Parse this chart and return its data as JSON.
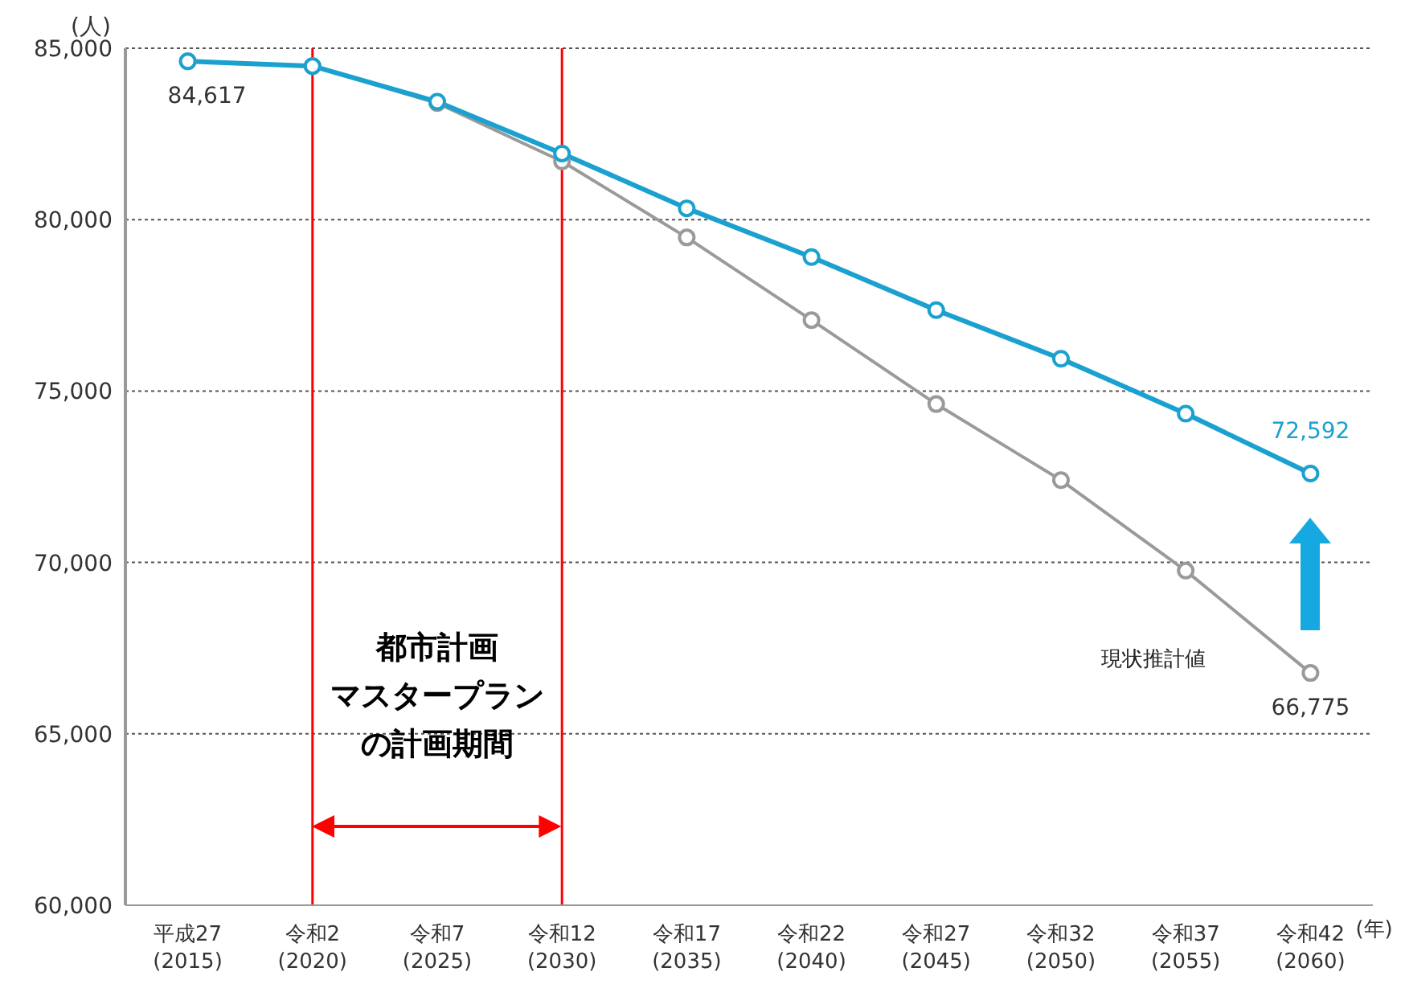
{
  "chart_data": {
    "type": "line",
    "ylabel": "(人)",
    "xlabel": "(年)",
    "categories": [
      "平成27\n(2015)",
      "令和2\n(2020)",
      "令和7\n(2025)",
      "令和12\n(2030)",
      "令和17\n(2035)",
      "令和22\n(2040)",
      "令和27\n(2045)",
      "令和32\n(2050)",
      "令和37\n(2055)",
      "令和42\n(2060)"
    ],
    "series": [
      {
        "name": "現状推計値",
        "color": "#9a9a9a",
        "values": [
          84617,
          84480,
          83400,
          81700,
          79480,
          77070,
          74620,
          72400,
          69760,
          66775
        ],
        "value_labels": [
          "84,617",
          null,
          null,
          null,
          null,
          null,
          null,
          null,
          null,
          "66,775"
        ]
      },
      {
        "color": "#1ba1cf",
        "values": [
          84620,
          84480,
          83440,
          81930,
          80330,
          78910,
          77360,
          75940,
          74340,
          72592
        ],
        "value_labels": [
          null,
          null,
          null,
          null,
          null,
          null,
          null,
          null,
          null,
          "72,592"
        ]
      }
    ],
    "ylim": [
      60000,
      85000
    ],
    "yticks": [
      {
        "value": 60000,
        "label": "60,000"
      },
      {
        "value": 65000,
        "label": "65,000"
      },
      {
        "value": 70000,
        "label": "70,000"
      },
      {
        "value": 75000,
        "label": "75,000"
      },
      {
        "value": 80000,
        "label": "80,000"
      },
      {
        "value": 85000,
        "label": "85,000"
      }
    ],
    "grid": "y",
    "legend": false,
    "marker": "circle",
    "line_style": "solid",
    "ref_lines": [
      {
        "axis": "x",
        "value": "令和2\n(2020)",
        "color": "#ff0000"
      },
      {
        "axis": "x",
        "value": "令和12\n(2030)",
        "color": "#ff0000"
      }
    ],
    "annotations": [
      "都市計画",
      "マスタープラン",
      "の計画期間"
    ]
  }
}
